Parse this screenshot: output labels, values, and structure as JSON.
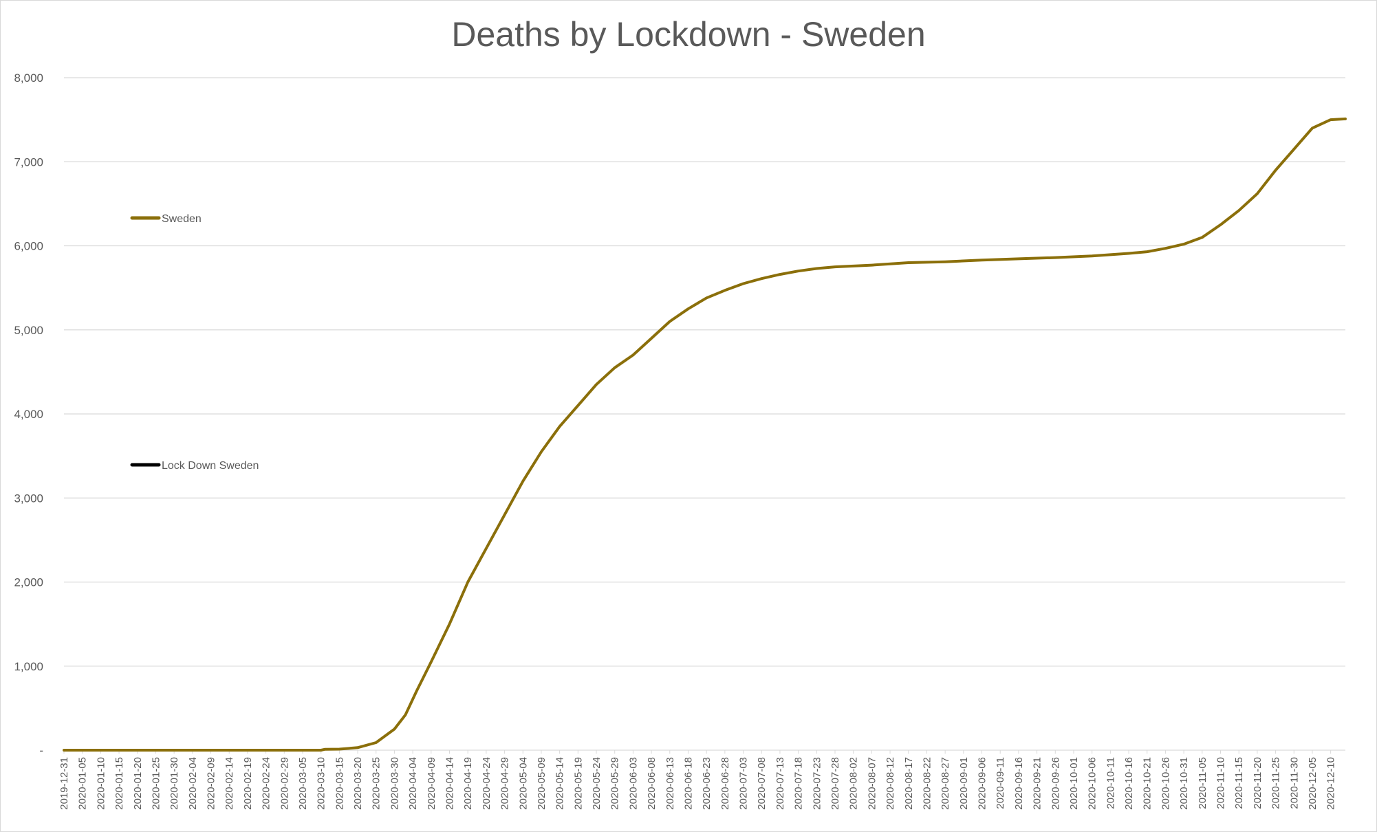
{
  "chart_data": {
    "type": "line",
    "title": "Deaths by Lockdown - Sweden",
    "xlabel": "",
    "ylabel": "",
    "ylim": [
      0,
      8000
    ],
    "y_ticks": [
      0,
      1000,
      2000,
      3000,
      4000,
      5000,
      6000,
      7000,
      8000
    ],
    "y_tick_labels": [
      "-",
      "1,000",
      "2,000",
      "3,000",
      "4,000",
      "5,000",
      "6,000",
      "7,000",
      "8,000"
    ],
    "grid": true,
    "x_start": "2019-12-31",
    "x_end": "2020-12-14",
    "x_tick_labels": [
      "2019-12-31",
      "2020-01-05",
      "2020-01-10",
      "2020-01-15",
      "2020-01-20",
      "2020-01-25",
      "2020-01-30",
      "2020-02-04",
      "2020-02-09",
      "2020-02-14",
      "2020-02-19",
      "2020-02-24",
      "2020-02-29",
      "2020-03-05",
      "2020-03-10",
      "2020-03-15",
      "2020-03-20",
      "2020-03-25",
      "2020-03-30",
      "2020-04-04",
      "2020-04-09",
      "2020-04-14",
      "2020-04-19",
      "2020-04-24",
      "2020-04-29",
      "2020-05-04",
      "2020-05-09",
      "2020-05-14",
      "2020-05-19",
      "2020-05-24",
      "2020-05-29",
      "2020-06-03",
      "2020-06-08",
      "2020-06-13",
      "2020-06-18",
      "2020-06-23",
      "2020-06-28",
      "2020-07-03",
      "2020-07-08",
      "2020-07-13",
      "2020-07-18",
      "2020-07-23",
      "2020-07-28",
      "2020-08-02",
      "2020-08-07",
      "2020-08-12",
      "2020-08-17",
      "2020-08-22",
      "2020-08-27",
      "2020-09-01",
      "2020-09-06",
      "2020-09-11",
      "2020-09-16",
      "2020-09-21",
      "2020-09-26",
      "2020-10-01",
      "2020-10-06",
      "2020-10-11",
      "2020-10-16",
      "2020-10-21",
      "2020-10-26",
      "2020-10-31",
      "2020-11-05",
      "2020-11-10",
      "2020-11-15",
      "2020-11-20",
      "2020-11-25",
      "2020-11-30",
      "2020-12-05",
      "2020-12-10"
    ],
    "legend": [
      {
        "name": "Sweden",
        "color": "#8B6F0A"
      },
      {
        "name": "Lock Down Sweden",
        "color": "#000000"
      }
    ],
    "series": [
      {
        "name": "Sweden",
        "color": "#8B6F0A",
        "points": [
          [
            "2019-12-31",
            0
          ],
          [
            "2020-03-10",
            0
          ],
          [
            "2020-03-11",
            10
          ],
          [
            "2020-03-15",
            12
          ],
          [
            "2020-03-20",
            30
          ],
          [
            "2020-03-25",
            90
          ],
          [
            "2020-03-30",
            250
          ],
          [
            "2020-04-02",
            420
          ],
          [
            "2020-04-05",
            700
          ],
          [
            "2020-04-09",
            1050
          ],
          [
            "2020-04-14",
            1500
          ],
          [
            "2020-04-19",
            2000
          ],
          [
            "2020-04-24",
            2400
          ],
          [
            "2020-04-29",
            2800
          ],
          [
            "2020-05-04",
            3200
          ],
          [
            "2020-05-09",
            3550
          ],
          [
            "2020-05-14",
            3850
          ],
          [
            "2020-05-19",
            4100
          ],
          [
            "2020-05-24",
            4350
          ],
          [
            "2020-05-29",
            4550
          ],
          [
            "2020-06-03",
            4700
          ],
          [
            "2020-06-08",
            4900
          ],
          [
            "2020-06-13",
            5100
          ],
          [
            "2020-06-18",
            5250
          ],
          [
            "2020-06-23",
            5380
          ],
          [
            "2020-06-28",
            5470
          ],
          [
            "2020-07-03",
            5550
          ],
          [
            "2020-07-08",
            5610
          ],
          [
            "2020-07-13",
            5660
          ],
          [
            "2020-07-18",
            5700
          ],
          [
            "2020-07-23",
            5730
          ],
          [
            "2020-07-28",
            5750
          ],
          [
            "2020-08-07",
            5770
          ],
          [
            "2020-08-17",
            5800
          ],
          [
            "2020-08-27",
            5810
          ],
          [
            "2020-09-06",
            5830
          ],
          [
            "2020-09-16",
            5845
          ],
          [
            "2020-09-26",
            5860
          ],
          [
            "2020-10-06",
            5880
          ],
          [
            "2020-10-16",
            5910
          ],
          [
            "2020-10-21",
            5930
          ],
          [
            "2020-10-26",
            5970
          ],
          [
            "2020-10-31",
            6020
          ],
          [
            "2020-11-05",
            6100
          ],
          [
            "2020-11-10",
            6250
          ],
          [
            "2020-11-15",
            6420
          ],
          [
            "2020-11-20",
            6620
          ],
          [
            "2020-11-25",
            6900
          ],
          [
            "2020-11-30",
            7150
          ],
          [
            "2020-12-05",
            7400
          ],
          [
            "2020-12-10",
            7500
          ],
          [
            "2020-12-14",
            7510
          ]
        ]
      }
    ]
  }
}
